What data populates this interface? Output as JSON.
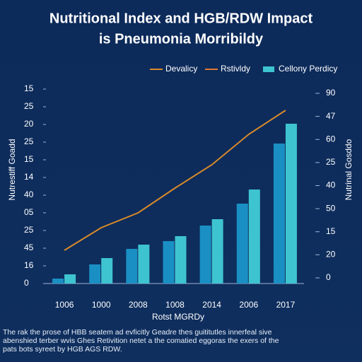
{
  "chart_data": {
    "type": "bar",
    "title": [
      "Nutritional Index and HGB/RDW Impact",
      "is Pneumonia Morribildy"
    ],
    "x_label": "Rotst MGRDy",
    "y_label": "Nutrestiff Goadd",
    "y2_label": "Nutrinal Gosddo",
    "categories": [
      "1006",
      "1000",
      "2008",
      "1008",
      "2014",
      "2006",
      "2017"
    ],
    "series": [
      {
        "name": "Devalicy",
        "type": "line",
        "color": "#d98a2a",
        "values": [
          1.88,
          3.16,
          4.0,
          5.4,
          6.72,
          8.44,
          9.8
        ]
      },
      {
        "name": "Rstivldy",
        "type": "bar",
        "color": "#1a8fc4",
        "legend_color": "#e07a30",
        "values": [
          0.28,
          1.08,
          1.96,
          2.4,
          3.28,
          4.52,
          7.92
        ]
      },
      {
        "name": "Cellony Perdicy",
        "type": "bar",
        "color": "#3ec4d0",
        "values": [
          0.52,
          1.44,
          2.2,
          2.68,
          3.64,
          5.32,
          9.04
        ]
      }
    ],
    "ylim": [
      0,
      11
    ],
    "yticks": [
      {
        "value": 0,
        "label": "0"
      },
      {
        "value": 1,
        "label": "16"
      },
      {
        "value": 2,
        "label": "45"
      },
      {
        "value": 3,
        "label": "25"
      },
      {
        "value": 4,
        "label": "05"
      },
      {
        "value": 5,
        "label": "40"
      },
      {
        "value": 6,
        "label": "14"
      },
      {
        "value": 7,
        "label": "15"
      },
      {
        "value": 8,
        "label": "25"
      },
      {
        "value": 9,
        "label": "20"
      },
      {
        "value": 10,
        "label": "25"
      },
      {
        "value": 11,
        "label": "15"
      }
    ],
    "y2lim": [
      0,
      8
    ],
    "y2ticks": [
      0,
      {
        "value": 1,
        "label": "20"
      },
      {
        "value": 2,
        "label": "15"
      },
      {
        "value": 3,
        "label": "50"
      },
      {
        "value": 4,
        "label": "40"
      },
      {
        "value": 5,
        "label": "25"
      },
      {
        "value": 6,
        "label": "60"
      },
      {
        "value": 7,
        "label": "47"
      },
      {
        "value": 8,
        "label": "90"
      }
    ],
    "legend": "top-right",
    "caption": [
      "The rak the prose of HBB seatem ad evficitly Geadre thes guititutles innerfeal sive",
      "abenshied terber wvis Ghes Retivition netet a the comatied eggoras the exers of the",
      "pats bots syreet by HGB AGS RDW."
    ]
  }
}
